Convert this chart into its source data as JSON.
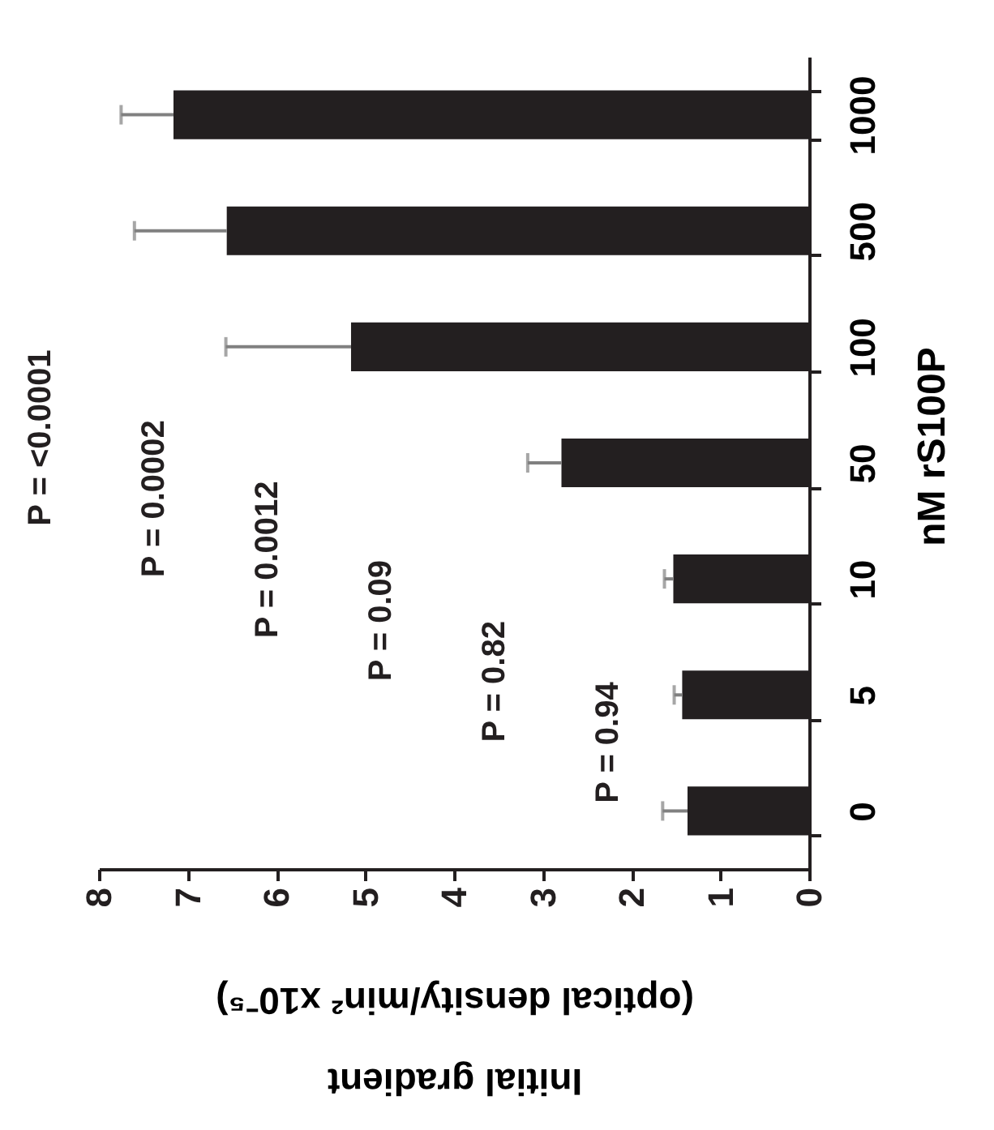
{
  "chart_data": {
    "type": "bar",
    "orientation": "horizontal",
    "categories": [
      "1000",
      "500",
      "100",
      "50",
      "10",
      "5",
      "0"
    ],
    "values": [
      7.16,
      6.56,
      5.16,
      2.79,
      1.53,
      1.43,
      1.37
    ],
    "errors": [
      [
        7.16,
        7.75
      ],
      [
        6.56,
        7.6
      ],
      [
        5.16,
        6.57
      ],
      [
        2.79,
        3.17
      ],
      [
        1.53,
        1.63
      ],
      [
        1.43,
        1.52
      ],
      [
        1.37,
        1.65
      ]
    ],
    "color": "#231f20",
    "xlim": [
      8,
      0
    ],
    "xticks": [
      0,
      1,
      2,
      3,
      4,
      5,
      6,
      7,
      8
    ],
    "xlabel": "Initial gradient (optical density/min² x10⁻⁵)",
    "ylabel": "nM rS100P",
    "annotations": [
      "P = <0.0001",
      "P = 0.0002",
      "P = 0.0012",
      "P = 0.09",
      "P = 0.82",
      "P = 0.94"
    ],
    "grid": false
  }
}
